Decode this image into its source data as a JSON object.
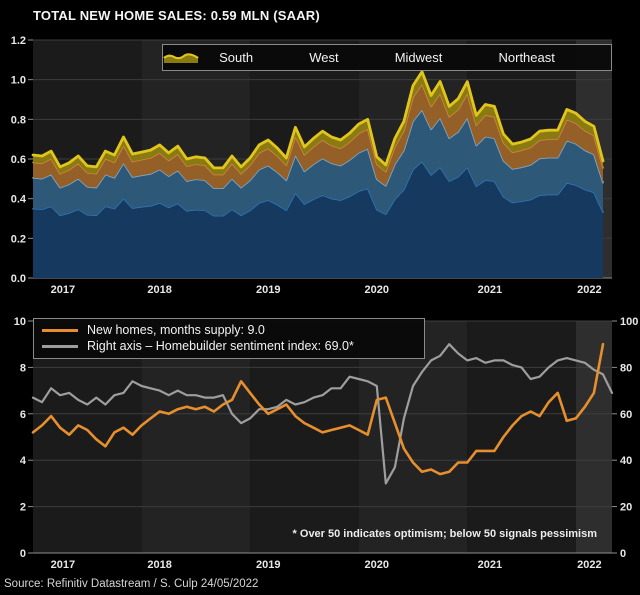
{
  "header": {
    "title": "TOTAL NEW HOME SALES: 0.59 MLN (SAAR)"
  },
  "footer": {
    "source": "Source: Refinitiv Datastream / S. Culp 24/05/2022"
  },
  "colors": {
    "band_dark": "#1b1b1b",
    "band_light": "#232323",
    "band_last": "#2e2e2e",
    "grid": "#3d3d3d",
    "axis": "#8f8f8f",
    "tick_text": "#e8e8e8"
  },
  "chart_data": [
    {
      "type": "area",
      "stacked": true,
      "title": "TOTAL NEW HOME SALES: 0.59 MLN (SAAR)",
      "x_range": "Jan 2017 - Apr 2022 (monthly)",
      "ylim": [
        0.0,
        1.2
      ],
      "y_ticks": [
        "1.2",
        "1.0",
        "0.8",
        "0.6",
        "0.4",
        "0.2",
        "0.0"
      ],
      "x_labels": [
        "2017",
        "2018",
        "2019",
        "2020",
        "2021",
        "2022"
      ],
      "legend": [
        {
          "label": "South"
        },
        {
          "label": "West"
        },
        {
          "label": "Midwest"
        },
        {
          "label": "Northeast"
        }
      ],
      "series": [
        {
          "name": "South",
          "fill": "#16395f",
          "line": "#2e74b5",
          "lw": 1.7,
          "values": [
            0.35,
            0.347,
            0.362,
            0.316,
            0.328,
            0.347,
            0.319,
            0.316,
            0.362,
            0.35,
            0.401,
            0.353,
            0.359,
            0.364,
            0.379,
            0.356,
            0.376,
            0.339,
            0.345,
            0.342,
            0.314,
            0.314,
            0.347,
            0.316,
            0.342,
            0.379,
            0.393,
            0.37,
            0.342,
            0.429,
            0.373,
            0.398,
            0.418,
            0.401,
            0.393,
            0.412,
            0.438,
            0.452,
            0.345,
            0.322,
            0.398,
            0.446,
            0.548,
            0.588,
            0.52,
            0.559,
            0.489,
            0.511,
            0.559,
            0.463,
            0.494,
            0.489,
            0.41,
            0.381,
            0.387,
            0.396,
            0.418,
            0.421,
            0.421,
            0.48,
            0.469,
            0.446,
            0.432,
            0.333
          ]
        },
        {
          "name": "West",
          "fill": "#2d5877",
          "line": "#7fa8c9",
          "lw": 1.7,
          "values": [
            0.155,
            0.154,
            0.16,
            0.14,
            0.145,
            0.154,
            0.141,
            0.14,
            0.16,
            0.155,
            0.178,
            0.156,
            0.159,
            0.161,
            0.168,
            0.158,
            0.166,
            0.15,
            0.153,
            0.151,
            0.139,
            0.139,
            0.154,
            0.14,
            0.151,
            0.168,
            0.174,
            0.164,
            0.151,
            0.19,
            0.165,
            0.176,
            0.185,
            0.178,
            0.174,
            0.183,
            0.194,
            0.2,
            0.153,
            0.143,
            0.176,
            0.198,
            0.243,
            0.26,
            0.23,
            0.248,
            0.216,
            0.226,
            0.248,
            0.205,
            0.219,
            0.216,
            0.181,
            0.169,
            0.171,
            0.175,
            0.185,
            0.186,
            0.186,
            0.213,
            0.208,
            0.198,
            0.191,
            0.148
          ]
        },
        {
          "name": "Midwest",
          "fill": "#955f28",
          "line": "#cd8640",
          "lw": 1.7,
          "values": [
            0.078,
            0.077,
            0.08,
            0.07,
            0.073,
            0.077,
            0.071,
            0.07,
            0.08,
            0.078,
            0.089,
            0.078,
            0.079,
            0.081,
            0.084,
            0.079,
            0.083,
            0.075,
            0.076,
            0.076,
            0.069,
            0.069,
            0.077,
            0.07,
            0.076,
            0.084,
            0.087,
            0.082,
            0.076,
            0.095,
            0.083,
            0.088,
            0.093,
            0.089,
            0.087,
            0.091,
            0.097,
            0.1,
            0.076,
            0.071,
            0.088,
            0.099,
            0.121,
            0.13,
            0.115,
            0.124,
            0.108,
            0.113,
            0.124,
            0.103,
            0.109,
            0.108,
            0.091,
            0.084,
            0.086,
            0.088,
            0.093,
            0.093,
            0.093,
            0.106,
            0.104,
            0.099,
            0.096,
            0.074
          ]
        },
        {
          "name": "Northeast",
          "fill": "#8a7a12",
          "line": "#e2c51c",
          "lw": 2.8,
          "values": [
            0.037,
            0.037,
            0.038,
            0.034,
            0.035,
            0.037,
            0.034,
            0.034,
            0.038,
            0.037,
            0.043,
            0.038,
            0.038,
            0.039,
            0.04,
            0.038,
            0.04,
            0.036,
            0.037,
            0.036,
            0.033,
            0.033,
            0.037,
            0.034,
            0.036,
            0.04,
            0.042,
            0.039,
            0.036,
            0.046,
            0.04,
            0.042,
            0.044,
            0.043,
            0.042,
            0.044,
            0.047,
            0.048,
            0.037,
            0.034,
            0.042,
            0.047,
            0.058,
            0.062,
            0.055,
            0.06,
            0.052,
            0.054,
            0.059,
            0.049,
            0.053,
            0.052,
            0.044,
            0.041,
            0.041,
            0.042,
            0.044,
            0.045,
            0.045,
            0.051,
            0.05,
            0.047,
            0.046,
            0.035
          ]
        }
      ]
    },
    {
      "type": "line",
      "x_range": "Jan 2017 - May 2022 (monthly)",
      "left_ylim": [
        0,
        10
      ],
      "right_ylim": [
        0,
        100
      ],
      "left_ticks": [
        "10",
        "8",
        "6",
        "4",
        "2",
        "0"
      ],
      "right_ticks": [
        "100",
        "80",
        "60",
        "40",
        "20",
        "0"
      ],
      "x_labels": [
        "2017",
        "2018",
        "2019",
        "2020",
        "2021",
        "2022"
      ],
      "annotation": "* Over 50 indicates optimism; below 50 signals pessimism",
      "legend": [
        {
          "label": "New homes, months supply: 9.0"
        },
        {
          "label": "Right axis – Homebuilder sentiment index: 69.0*"
        }
      ],
      "series": [
        {
          "name": "Homebuilder sentiment index",
          "axis": "right",
          "color": "#9e9e9e",
          "lw": 2.2,
          "values": [
            67,
            65,
            71,
            68,
            69,
            66,
            64,
            67,
            64,
            68,
            69,
            74,
            72,
            71,
            70,
            68,
            70,
            68,
            68,
            67,
            67,
            68,
            60,
            56,
            58,
            62,
            62,
            63,
            66,
            64,
            65,
            67,
            68,
            71,
            71,
            76,
            75,
            74,
            72,
            30,
            37,
            58,
            72,
            78,
            83,
            85,
            90,
            86,
            83,
            84,
            82,
            83,
            83,
            81,
            80,
            75,
            76,
            80,
            83,
            84,
            83,
            82,
            79,
            77,
            69
          ]
        },
        {
          "name": "New homes, months supply",
          "axis": "left",
          "color": "#e78f2e",
          "lw": 2.6,
          "values": [
            5.2,
            5.5,
            5.9,
            5.4,
            5.1,
            5.5,
            5.3,
            4.9,
            4.6,
            5.2,
            5.4,
            5.1,
            5.5,
            5.8,
            6.1,
            6.0,
            6.2,
            6.3,
            6.2,
            6.3,
            6.1,
            6.4,
            6.6,
            7.4,
            6.9,
            6.4,
            6.0,
            6.2,
            6.4,
            5.9,
            5.6,
            5.4,
            5.2,
            5.3,
            5.4,
            5.5,
            5.3,
            5.1,
            6.6,
            6.7,
            5.6,
            4.5,
            3.9,
            3.5,
            3.6,
            3.4,
            3.5,
            3.9,
            3.9,
            4.4,
            4.4,
            4.4,
            5.0,
            5.5,
            5.9,
            6.1,
            5.9,
            6.5,
            6.9,
            5.7,
            5.8,
            6.3,
            6.9,
            9.0
          ]
        }
      ]
    }
  ]
}
